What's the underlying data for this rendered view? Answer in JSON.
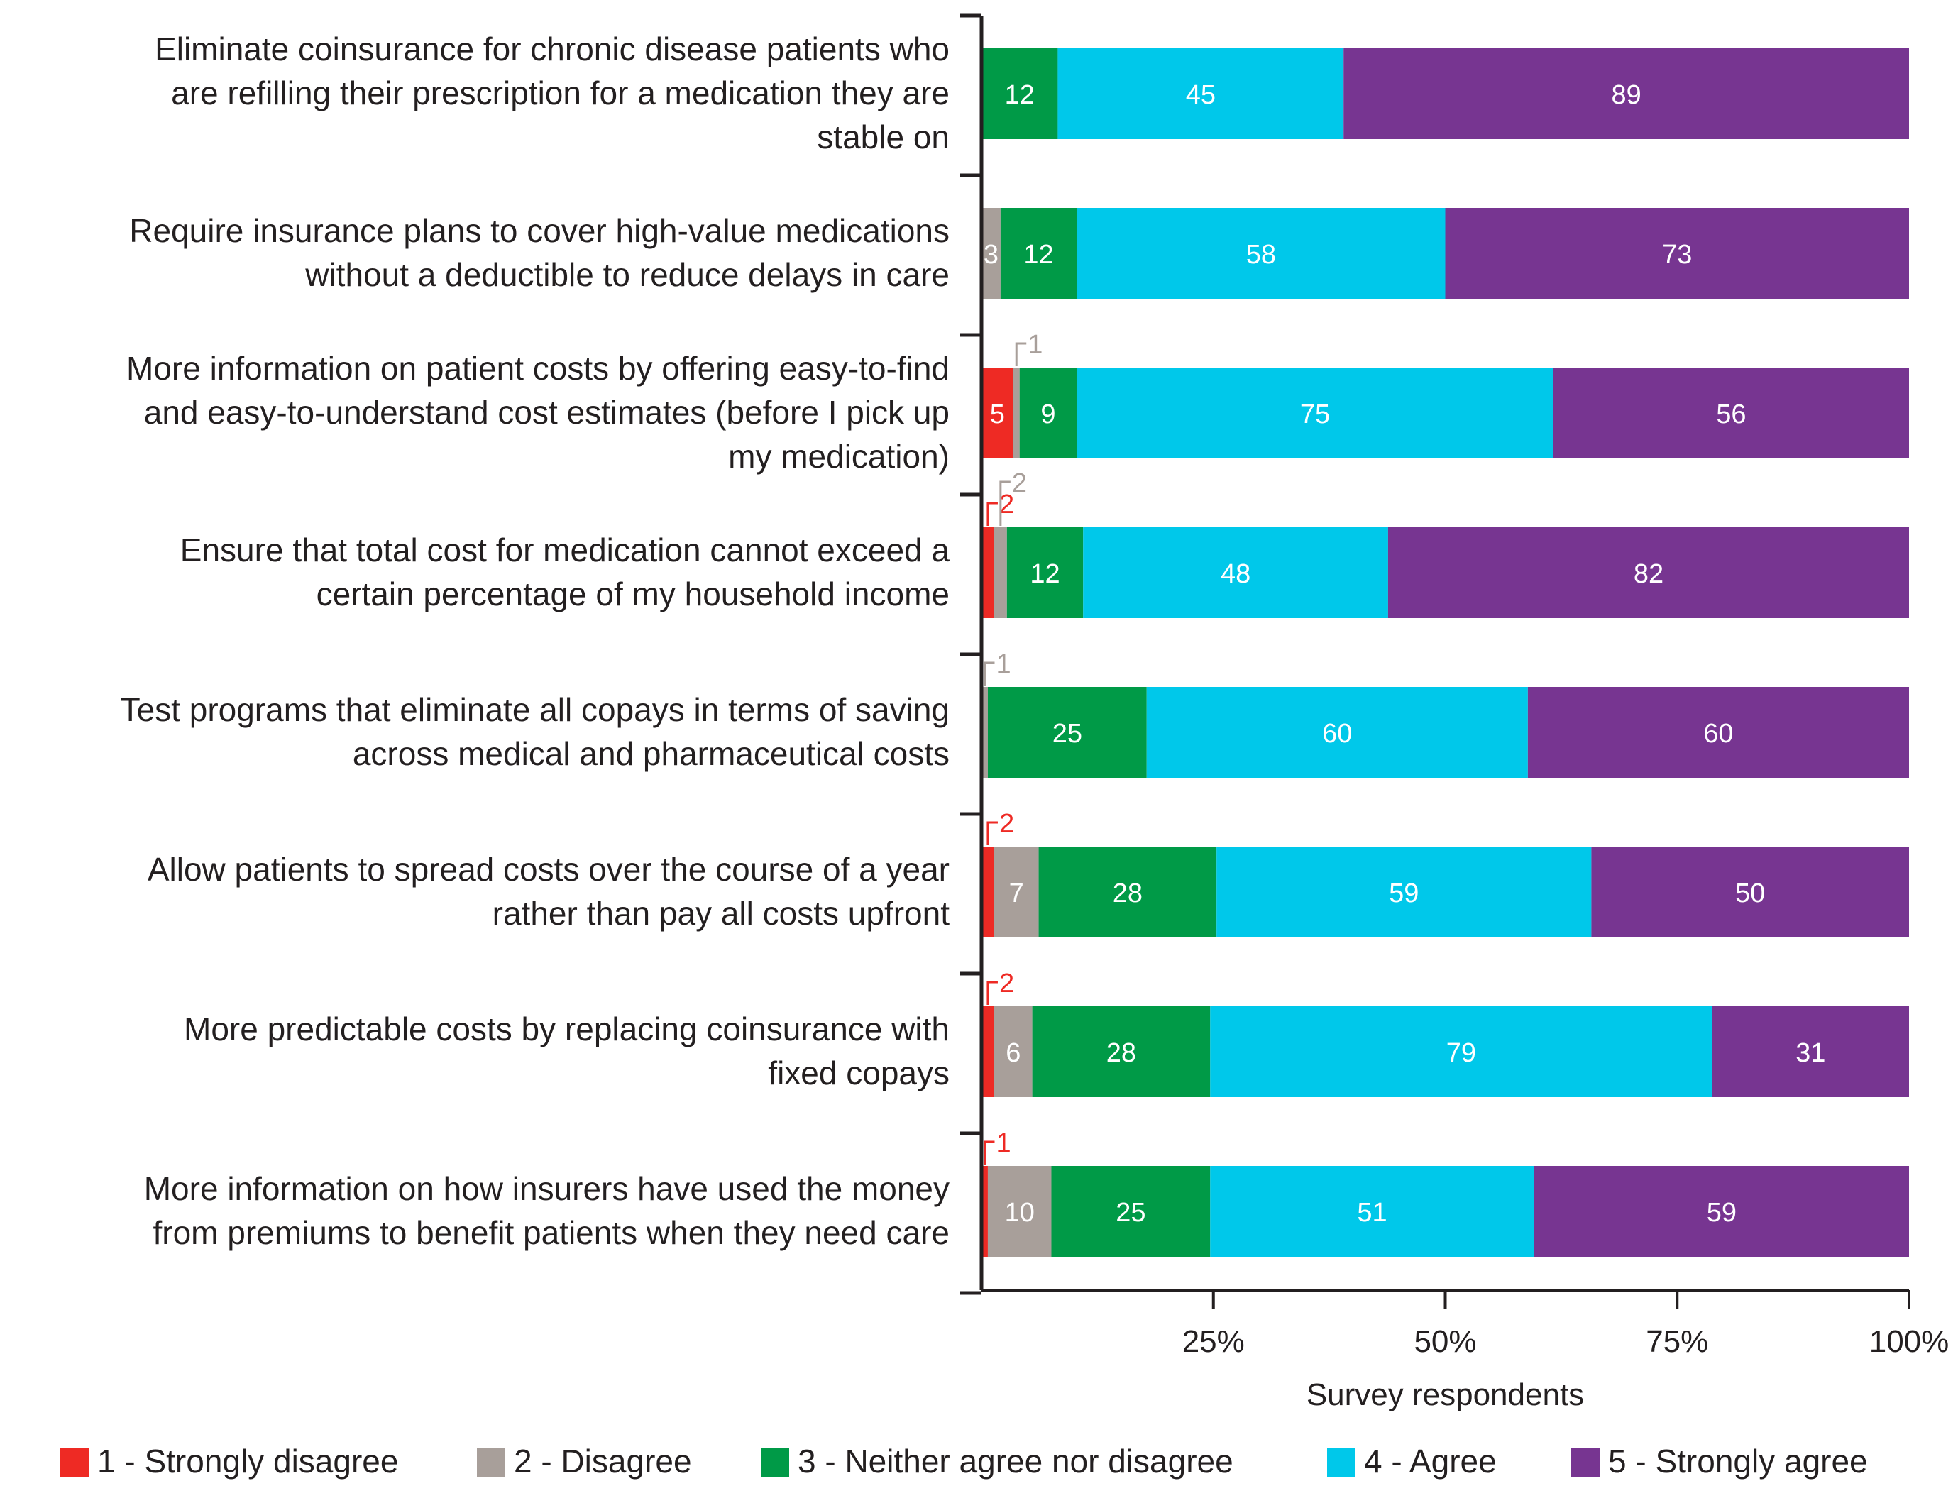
{
  "chart_data": {
    "type": "bar",
    "orientation": "horizontal",
    "stacked": "percent",
    "xlabel": "Survey respondents",
    "xlim": [
      0,
      100
    ],
    "xticks": [
      "25%",
      "50%",
      "75%",
      "100%"
    ],
    "categories": [
      [
        "Eliminate coinsurance for chronic disease patients who",
        "are refilling their prescription for a medication they are",
        "stable on"
      ],
      [
        "Require insurance plans to cover high-value medications",
        "without a deductible to reduce delays in care"
      ],
      [
        "More information on patient costs by offering easy-to-find",
        "and easy-to-understand cost estimates (before I pick up",
        "my medication)"
      ],
      [
        "Ensure that total cost for medication cannot exceed a",
        "certain percentage of my household income"
      ],
      [
        "Test programs that eliminate all copays in terms of saving",
        "across medical and pharmaceutical costs"
      ],
      [
        "Allow patients to spread costs over the course of a year",
        "rather than pay all costs upfront"
      ],
      [
        "More predictable costs by replacing coinsurance with",
        "fixed copays"
      ],
      [
        "More information on how insurers have used the money",
        "from premiums to benefit patients when they need care"
      ]
    ],
    "series": [
      {
        "name": "1 - Strongly disagree",
        "color": "#ee2a24",
        "values": [
          0,
          0,
          5,
          2,
          0,
          2,
          2,
          1
        ]
      },
      {
        "name": "2 - Disagree",
        "color": "#a89f9a",
        "values": [
          0,
          3,
          1,
          2,
          1,
          7,
          6,
          10
        ]
      },
      {
        "name": "3 - Neither agree nor disagree",
        "color": "#009a47",
        "values": [
          12,
          12,
          9,
          12,
          25,
          28,
          28,
          25
        ]
      },
      {
        "name": "4 - Agree",
        "color": "#00c8ea",
        "values": [
          45,
          58,
          75,
          48,
          60,
          59,
          79,
          51
        ]
      },
      {
        "name": "5 - Strongly agree",
        "color": "#773591",
        "values": [
          89,
          73,
          56,
          82,
          60,
          50,
          31,
          59
        ]
      }
    ],
    "legend": "bottom"
  }
}
